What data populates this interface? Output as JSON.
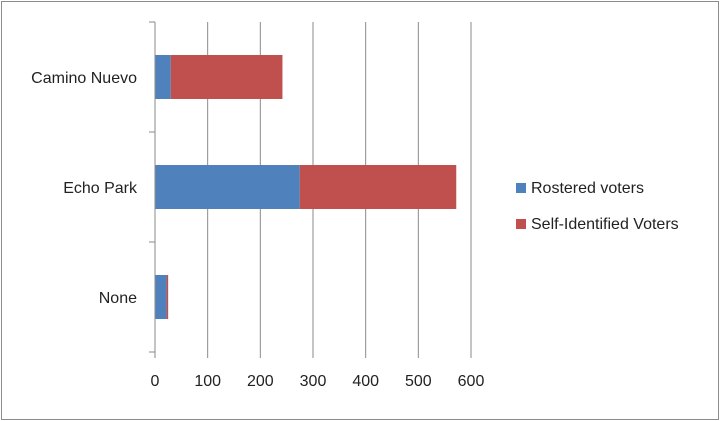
{
  "chart_data": {
    "type": "bar",
    "orientation": "horizontal",
    "stacked": true,
    "categories": [
      "Camino Nuevo",
      "Echo Park",
      "None"
    ],
    "series": [
      {
        "name": "Rostered voters",
        "values": [
          30,
          275,
          22
        ],
        "color": "#4f81bd"
      },
      {
        "name": "Self-Identified Voters",
        "values": [
          212,
          297,
          3
        ],
        "color": "#c0504d"
      }
    ],
    "xlim": [
      0,
      600
    ],
    "xticks": [
      0,
      100,
      200,
      300,
      400,
      500,
      600
    ],
    "title": "",
    "xlabel": "",
    "ylabel": "",
    "grid": "vertical",
    "legend": "right"
  }
}
